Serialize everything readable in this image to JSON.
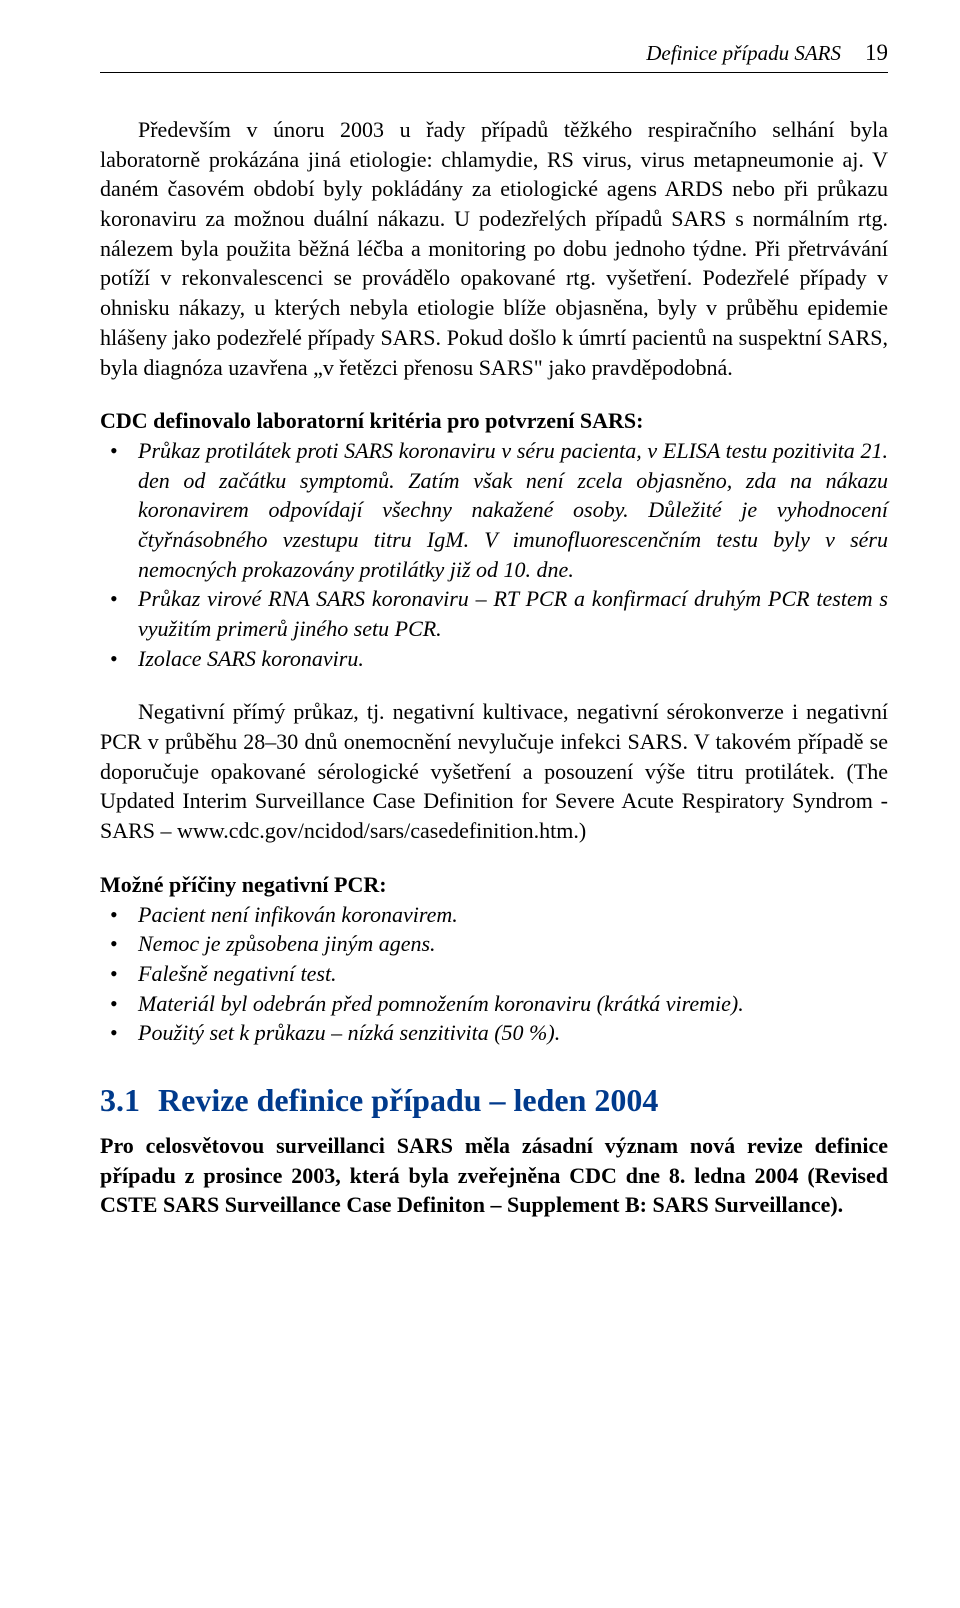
{
  "header": {
    "running_title": "Definice případu SARS",
    "page_number": "19"
  },
  "para1_indent": "Především v únoru 2003 u řady případů těžkého respiračního selhání byla laboratorně prokázána jiná etiologie: chlamydie, RS virus, virus metapneumonie aj. V daném časovém období byly pokládány za etiologické agens ARDS nebo při průkazu koronaviru za možnou duální nákazu. U podezřelých případů SARS s normálním rtg. nálezem byla použita běžná léčba a monitoring po dobu jednoho týdne. Při přetrvávání potíží v rekonvalescenci se provádělo opakované rtg. vyšetření. Podezřelé případy v ohnisku nákazy, u kterých nebyla etiologie blíže objasněna, byly v průběhu epidemie hlášeny jako podezřelé případy SARS. Pokud došlo k úmrtí pacientů na suspektní SARS, byla diagnóza uzavřena „v řetězci přenosu SARS\" jako pravděpodobná.",
  "criteria_heading": "CDC definovalo laboratorní kritéria pro potvrzení SARS:",
  "criteria_list": [
    "Průkaz protilátek proti SARS koronaviru v séru pacienta, v ELISA testu pozitivita 21. den od začátku symptomů. Zatím však není zcela objasněno, zda na nákazu koronavirem odpovídají všechny nakažené osoby. Důležité je vyhodnocení čtyřnásobného vzestupu titru IgM. V imunofluorescenčním testu byly v séru nemocných prokazovány protilátky již od 10. dne.",
    "Průkaz virové RNA SARS koronaviru – RT PCR a konfirmací druhým PCR testem s využitím primerů jiného setu PCR.",
    "Izolace SARS koronaviru."
  ],
  "para2_indent": "Negativní přímý průkaz, tj. negativní kultivace, negativní sérokonverze i negativní PCR v průběhu 28–30 dnů onemocnění nevylučuje infekci SARS. V takovém případě se doporučuje opakované sérologické vyšetření a posouzení výše titru protilátek. (The Updated Interim Surveillance Case Definition for Severe Acute Respiratory Syndrom - SARS – www.cdc.gov/ncidod/sars/casedefinition.htm.)",
  "causes_heading": "Možné příčiny negativní PCR:",
  "causes_list": [
    "Pacient není infikován koronavirem.",
    "Nemoc je způsobena jiným agens.",
    "Falešně negativní test.",
    "Materiál byl odebrán před pomnožením koronaviru (krátká viremie).",
    "Použitý set k průkazu – nízká senzitivita (50 %)."
  ],
  "section": {
    "number": "3.1",
    "title": "Revize definice případu – leden 2004"
  },
  "final_para": "Pro celosvětovou surveillanci SARS měla zásadní význam nová revize definice případu z prosince 2003, která byla zveřejněna CDC dne 8. ledna 2004 (Revised CSTE SARS Surveillance Case Definiton – Supplement B: SARS Surveillance).",
  "colors": {
    "heading_color": "#003a8c",
    "text_color": "#000000",
    "background": "#ffffff"
  }
}
